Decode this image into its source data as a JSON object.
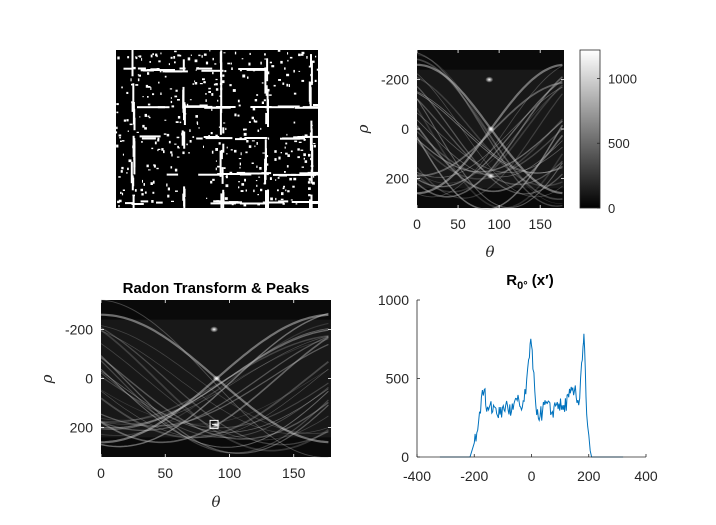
{
  "chart_data": [
    {
      "type": "heatmap",
      "name": "binary-edge-image",
      "colormap": "gray",
      "grid_lines": {
        "vertical_fractions": [
          0.08,
          0.33,
          0.52,
          0.74,
          0.96
        ],
        "horizontal_fractions": [
          0.12,
          0.35,
          0.55,
          0.78,
          0.96
        ]
      },
      "axes_visible": false
    },
    {
      "type": "heatmap",
      "name": "radon-transform-with-colorbar",
      "xlabel": "θ",
      "ylabel": "ρ",
      "xlim": [
        0,
        179
      ],
      "ylim": [
        -320,
        320
      ],
      "y_reversed": true,
      "xticks": [
        0,
        50,
        100,
        150
      ],
      "yticks": [
        -200,
        0,
        200
      ],
      "colormap": "gray",
      "colorbar": {
        "range": [
          0,
          1220
        ],
        "ticks": [
          0,
          500,
          1000
        ]
      },
      "bright_peaks": [
        {
          "theta": 88,
          "rho": -200
        },
        {
          "theta": 90,
          "rho": 0
        },
        {
          "theta": 90,
          "rho": 190
        }
      ]
    },
    {
      "type": "heatmap",
      "name": "radon-transform-peaks",
      "title": "Radon Transform & Peaks",
      "xlabel": "θ",
      "ylabel": "ρ",
      "xlim": [
        0,
        179
      ],
      "ylim": [
        -320,
        320
      ],
      "y_reversed": true,
      "xticks": [
        0,
        50,
        100,
        150
      ],
      "yticks": [
        -200,
        0,
        200
      ],
      "colormap": "gray",
      "bright_peaks": [
        {
          "theta": 88,
          "rho": -200
        },
        {
          "theta": 90,
          "rho": 0
        },
        {
          "theta": 90,
          "rho": 190
        }
      ],
      "peak_markers": [
        {
          "theta": 88,
          "rho": 187
        }
      ]
    },
    {
      "type": "line",
      "name": "radon-profile",
      "title_main": "R",
      "title_sub": "0°",
      "title_rest": " (x′)",
      "xlim": [
        -400,
        400
      ],
      "ylim": [
        0,
        1000
      ],
      "xticks": [
        -400,
        -200,
        0,
        200,
        400
      ],
      "yticks": [
        0,
        500,
        1000
      ],
      "line_color": "#0072BD",
      "key_points": [
        [
          -320,
          0
        ],
        [
          -215,
          0
        ],
        [
          -200,
          90
        ],
        [
          -185,
          220
        ],
        [
          -175,
          380
        ],
        [
          -165,
          430
        ],
        [
          -160,
          330
        ],
        [
          -150,
          300
        ],
        [
          -130,
          320
        ],
        [
          -110,
          270
        ],
        [
          -90,
          330
        ],
        [
          -70,
          290
        ],
        [
          -50,
          360
        ],
        [
          -35,
          300
        ],
        [
          -20,
          400
        ],
        [
          -10,
          620
        ],
        [
          -5,
          720
        ],
        [
          0,
          710
        ],
        [
          5,
          560
        ],
        [
          15,
          330
        ],
        [
          30,
          260
        ],
        [
          50,
          340
        ],
        [
          70,
          280
        ],
        [
          90,
          350
        ],
        [
          110,
          300
        ],
        [
          130,
          380
        ],
        [
          150,
          420
        ],
        [
          165,
          330
        ],
        [
          175,
          600
        ],
        [
          180,
          700
        ],
        [
          183,
          785
        ],
        [
          188,
          560
        ],
        [
          193,
          270
        ],
        [
          200,
          140
        ],
        [
          205,
          40
        ],
        [
          210,
          0
        ],
        [
          320,
          0
        ]
      ]
    }
  ]
}
